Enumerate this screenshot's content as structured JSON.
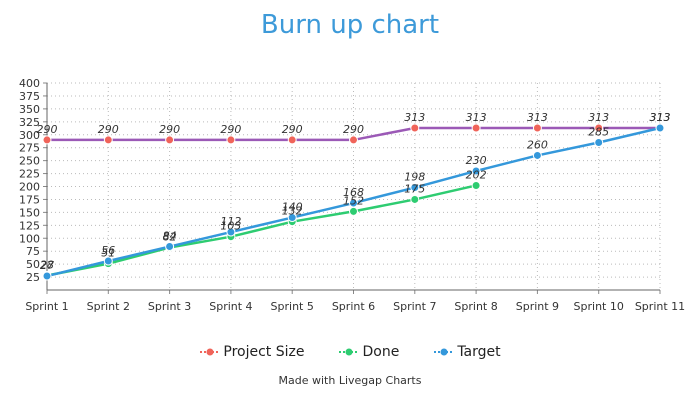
{
  "chart_data": {
    "type": "line",
    "title": "Burn up chart",
    "categories": [
      "Sprint 1",
      "Sprint 2",
      "Sprint 3",
      "Sprint 4",
      "Sprint 5",
      "Sprint 6",
      "Sprint 7",
      "Sprint 8",
      "Sprint 9",
      "Sprint 10",
      "Sprint 11"
    ],
    "ylim": [
      0,
      400
    ],
    "yticks": [
      25,
      50,
      75,
      100,
      125,
      150,
      175,
      200,
      225,
      250,
      275,
      300,
      325,
      350,
      375,
      400
    ],
    "grid": true,
    "legend_position": "bottom",
    "series": [
      {
        "name": "Project Size",
        "color": "#9b59b6",
        "marker_color": "#f0645a",
        "values": [
          290,
          290,
          290,
          290,
          290,
          290,
          313,
          313,
          313,
          313,
          313
        ]
      },
      {
        "name": "Done",
        "color": "#2ecc71",
        "marker_color": "#2ecc71",
        "values": [
          28,
          51,
          82,
          103,
          132,
          152,
          175,
          202,
          null,
          null,
          null
        ]
      },
      {
        "name": "Target",
        "color": "#3498db",
        "marker_color": "#3498db",
        "values": [
          27,
          56,
          84,
          112,
          140,
          168,
          198,
          230,
          260,
          285,
          313
        ]
      }
    ]
  },
  "credit": "Made with Livegap Charts"
}
